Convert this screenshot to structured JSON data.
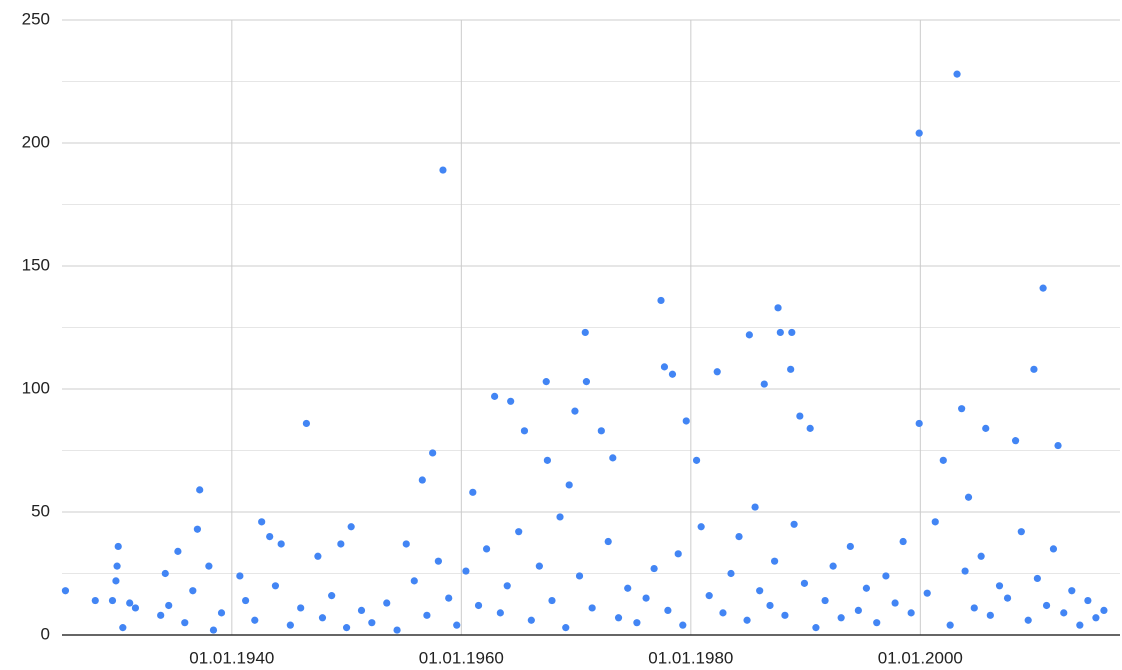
{
  "chart_data": {
    "type": "scatter",
    "xlim": [
      1925.2,
      2017.4
    ],
    "xticks": [
      {
        "value": 1940,
        "label": "01.01.1940"
      },
      {
        "value": 1960,
        "label": "01.01.1960"
      },
      {
        "value": 1980,
        "label": "01.01.1980"
      },
      {
        "value": 2000,
        "label": "01.01.2000"
      }
    ],
    "ylim": [
      0,
      250
    ],
    "yticks": [
      0,
      50,
      100,
      150,
      200,
      250
    ],
    "yminor": [
      25,
      75,
      125,
      175,
      225
    ],
    "grid": true,
    "color": "#4285f4",
    "x": [
      1925.5,
      1928.1,
      1930.1,
      1930.0,
      1929.9,
      1929.6,
      1931.1,
      1931.6,
      1934.2,
      1935.3,
      1937.2,
      1937.0,
      1938.0,
      1940.7,
      1942.6,
      1943.3,
      1944.3,
      1946.5,
      1947.5,
      1949.5,
      1950.4,
      1955.2,
      1956.6,
      1957.5,
      1958.4,
      1961.0,
      1962.9,
      1964.3,
      1965.5,
      1967.4,
      1967.5,
      1969.4,
      1969.9,
      1970.8,
      1970.9,
      1972.2,
      1973.2,
      1977.4,
      1977.7,
      1978.4,
      1979.6,
      1980.5,
      1982.3,
      1985.1,
      1986.4,
      1987.6,
      1987.8,
      1988.8,
      1988.7,
      1989.5,
      1990.4,
      1999.9,
      1999.9,
      2002.0,
      2003.2,
      2003.6,
      2004.2,
      2005.7,
      2008.3,
      2009.9,
      2010.7,
      2012.0,
      1930.5,
      1933.8,
      1934.5,
      1935.9,
      1936.6,
      1938.4,
      1939.1,
      1941.2,
      1942.0,
      1943.8,
      1945.1,
      1946.0,
      1947.9,
      1948.7,
      1950.0,
      1951.3,
      1952.2,
      1953.5,
      1954.4,
      1955.9,
      1957.0,
      1958.0,
      1958.9,
      1959.6,
      1960.4,
      1961.5,
      1962.2,
      1963.4,
      1964.0,
      1965.0,
      1966.1,
      1966.8,
      1967.9,
      1968.6,
      1969.1,
      1970.3,
      1971.4,
      1972.8,
      1973.7,
      1974.5,
      1975.3,
      1976.1,
      1976.8,
      1978.0,
      1978.9,
      1979.3,
      1980.9,
      1981.6,
      1982.8,
      1983.5,
      1984.2,
      1984.9,
      1985.6,
      1986.0,
      1986.9,
      1987.3,
      1988.2,
      1989.0,
      1989.9,
      1990.9,
      1991.7,
      1992.4,
      1993.1,
      1993.9,
      1994.6,
      1995.3,
      1996.2,
      1997.0,
      1997.8,
      1998.5,
      1999.2,
      2000.6,
      2001.3,
      2002.6,
      2003.9,
      2004.7,
      2005.3,
      2006.1,
      2006.9,
      2007.6,
      2008.8,
      2009.4,
      2010.2,
      2011.0,
      2011.6,
      2012.5,
      2013.2,
      2013.9,
      2014.6,
      2015.3,
      2016.0
    ],
    "values": [
      18,
      14,
      36,
      28,
      22,
      14,
      13,
      11,
      25,
      34,
      59,
      43,
      28,
      24,
      46,
      40,
      37,
      86,
      32,
      37,
      44,
      37,
      63,
      74,
      189,
      58,
      97,
      95,
      83,
      103,
      71,
      61,
      91,
      123,
      103,
      83,
      72,
      136,
      109,
      106,
      87,
      71,
      107,
      122,
      102,
      133,
      123,
      123,
      108,
      89,
      84,
      204,
      86,
      71,
      228,
      92,
      56,
      84,
      79,
      108,
      141,
      77,
      3,
      8,
      12,
      5,
      18,
      2,
      9,
      14,
      6,
      20,
      4,
      11,
      7,
      16,
      3,
      10,
      5,
      13,
      2,
      22,
      8,
      30,
      15,
      4,
      26,
      12,
      35,
      9,
      20,
      42,
      6,
      28,
      14,
      48,
      3,
      24,
      11,
      38,
      7,
      19,
      5,
      15,
      27,
      10,
      33,
      4,
      44,
      16,
      9,
      25,
      40,
      6,
      52,
      18,
      12,
      30,
      8,
      45,
      21,
      3,
      14,
      28,
      7,
      36,
      10,
      19,
      5,
      24,
      13,
      38,
      9,
      17,
      46,
      4,
      26,
      11,
      32,
      8,
      20,
      15,
      42,
      6,
      23,
      12,
      35,
      9,
      18,
      4,
      14,
      7,
      10
    ]
  }
}
